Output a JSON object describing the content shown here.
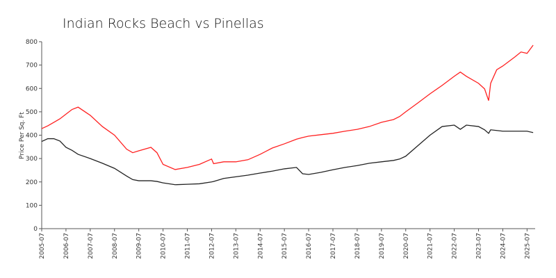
{
  "chart_data": {
    "type": "line",
    "title": "Indian Rocks Beach vs Pinellas",
    "y_label": "Price Per Sq. Ft",
    "x": [
      "2005-07",
      "2005-10",
      "2006-01",
      "2006-04",
      "2006-07",
      "2006-10",
      "2007-01",
      "2007-07",
      "2008-01",
      "2008-07",
      "2009-01",
      "2009-04",
      "2009-07",
      "2010-01",
      "2010-04",
      "2010-07",
      "2011-01",
      "2011-07",
      "2012-01",
      "2012-07",
      "2012-08",
      "2013-01",
      "2013-07",
      "2014-01",
      "2014-07",
      "2015-01",
      "2015-07",
      "2016-01",
      "2016-04",
      "2016-07",
      "2017-01",
      "2017-07",
      "2018-01",
      "2018-07",
      "2019-01",
      "2019-07",
      "2020-01",
      "2020-04",
      "2020-07",
      "2021-01",
      "2021-07",
      "2022-01",
      "2022-07",
      "2022-10",
      "2023-01",
      "2023-07",
      "2023-10",
      "2023-12",
      "2024-01",
      "2024-04",
      "2024-07",
      "2025-01",
      "2025-04",
      "2025-07",
      "2025-10"
    ],
    "series": [
      {
        "color": "#ff2020",
        "values": [
          428,
          440,
          455,
          470,
          490,
          510,
          520,
          485,
          437,
          400,
          340,
          325,
          333,
          348,
          325,
          275,
          253,
          262,
          275,
          298,
          278,
          286,
          286,
          295,
          318,
          345,
          363,
          383,
          390,
          396,
          402,
          408,
          417,
          425,
          437,
          455,
          467,
          480,
          500,
          538,
          577,
          613,
          652,
          670,
          652,
          622,
          598,
          548,
          622,
          680,
          696,
          735,
          756,
          750,
          785
        ]
      },
      {
        "color": "#222222",
        "values": [
          373,
          385,
          385,
          375,
          348,
          335,
          318,
          300,
          280,
          258,
          225,
          210,
          205,
          205,
          202,
          196,
          188,
          190,
          192,
          200,
          202,
          215,
          222,
          229,
          238,
          246,
          256,
          262,
          235,
          232,
          241,
          252,
          262,
          270,
          280,
          286,
          292,
          298,
          310,
          355,
          400,
          437,
          443,
          425,
          443,
          437,
          423,
          408,
          423,
          420,
          417,
          417,
          417,
          417,
          411
        ]
      }
    ],
    "xlim": [
      "2005-07",
      "2025-11"
    ],
    "xticks": [
      "2005-07",
      "2006-07",
      "2007-07",
      "2008-07",
      "2009-07",
      "2010-07",
      "2011-07",
      "2012-07",
      "2013-07",
      "2014-07",
      "2015-07",
      "2016-07",
      "2017-07",
      "2018-07",
      "2019-07",
      "2020-07",
      "2021-07",
      "2022-07",
      "2023-07",
      "2024-07",
      "2025-07"
    ],
    "ylim": [
      0,
      800
    ],
    "yticks": [
      0,
      100,
      200,
      300,
      400,
      500,
      600,
      700,
      800
    ],
    "grid": false
  }
}
